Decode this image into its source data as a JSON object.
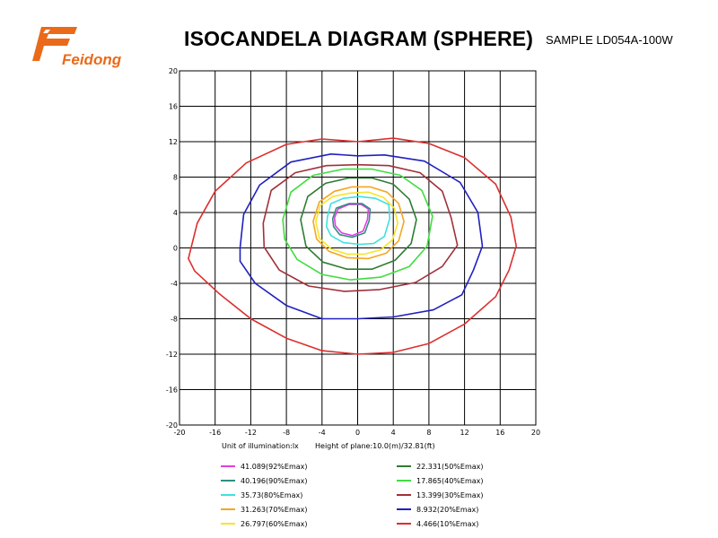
{
  "header": {
    "logo_text": "Feidong",
    "title": "ISOCANDELA DIAGRAM (SPHERE)",
    "sample": "SAMPLE  LD054A-100W"
  },
  "info": {
    "unit": "Unit of illumination:lx",
    "height": "Height of plane:10.0(m)/32.81(ft)"
  },
  "chart_data": {
    "type": "contour",
    "title": "ISOCANDELA DIAGRAM (SPHERE)",
    "xlim": [
      -20,
      20
    ],
    "ylim": [
      -20,
      20
    ],
    "x_ticks": [
      -20,
      -16,
      -12,
      -8,
      -4,
      0,
      4,
      8,
      12,
      16,
      20
    ],
    "y_ticks": [
      -20,
      -16,
      -12,
      -8,
      -4,
      0,
      4,
      8,
      12,
      16,
      20
    ],
    "grid": true,
    "legend_position": "bottom",
    "series": [
      {
        "name": "41.089(92%Emax)",
        "color": "#e040e0",
        "points": [
          [
            -2.6,
            3.4
          ],
          [
            -2.2,
            4.4
          ],
          [
            -1,
            4.9
          ],
          [
            0.4,
            4.9
          ],
          [
            1.2,
            4.4
          ],
          [
            1.1,
            3.2
          ],
          [
            0.6,
            1.9
          ],
          [
            -0.6,
            1.4
          ],
          [
            -1.8,
            1.7
          ],
          [
            -2.5,
            2.5
          ]
        ]
      },
      {
        "name": "40.196(90%Emax)",
        "color": "#2f8f7f",
        "points": [
          [
            -2.8,
            3.3
          ],
          [
            -2.4,
            4.5
          ],
          [
            -1,
            5
          ],
          [
            0.5,
            5
          ],
          [
            1.4,
            4.4
          ],
          [
            1.3,
            3.1
          ],
          [
            0.8,
            1.7
          ],
          [
            -0.6,
            1.2
          ],
          [
            -2,
            1.5
          ],
          [
            -2.7,
            2.4
          ]
        ]
      },
      {
        "name": "35.73(80%Emax)",
        "color": "#40e0e0",
        "points": [
          [
            -3.4,
            3.5
          ],
          [
            -3,
            5
          ],
          [
            -1.6,
            5.6
          ],
          [
            0.2,
            5.8
          ],
          [
            2,
            5.6
          ],
          [
            3.5,
            4.9
          ],
          [
            3.6,
            3.3
          ],
          [
            3,
            1.3
          ],
          [
            1.8,
            0.5
          ],
          [
            0.2,
            0.4
          ],
          [
            -1.6,
            0.6
          ],
          [
            -3,
            1.4
          ],
          [
            -3.5,
            2.4
          ]
        ]
      },
      {
        "name": "31.263(70%Emax)",
        "color": "#f5a623",
        "points": [
          [
            -5,
            3
          ],
          [
            -4.3,
            5.2
          ],
          [
            -2.6,
            6.4
          ],
          [
            -0.6,
            6.9
          ],
          [
            1.4,
            6.9
          ],
          [
            3.3,
            6.3
          ],
          [
            4.6,
            5
          ],
          [
            5.2,
            3
          ],
          [
            4.6,
            0.8
          ],
          [
            3.2,
            -0.6
          ],
          [
            1.2,
            -1.2
          ],
          [
            -1.2,
            -1.1
          ],
          [
            -3.2,
            -0.4
          ],
          [
            -4.6,
            1
          ]
        ]
      },
      {
        "name": "26.797(60%Emax)",
        "color": "#f5e52a",
        "points": [
          [
            -4.7,
            3
          ],
          [
            -4.2,
            4.8
          ],
          [
            -2.8,
            5.8
          ],
          [
            -0.8,
            6.2
          ],
          [
            1.2,
            6.3
          ],
          [
            2.9,
            5.7
          ],
          [
            4.1,
            4.5
          ],
          [
            4.5,
            2.8
          ],
          [
            3.9,
            0.9
          ],
          [
            2.6,
            -0.2
          ],
          [
            0.8,
            -0.7
          ],
          [
            -1.2,
            -0.7
          ],
          [
            -3,
            -0.1
          ],
          [
            -4.3,
            1.1
          ]
        ]
      },
      {
        "name": "22.331(50%Emax)",
        "color": "#2e7d32",
        "points": [
          [
            -6.4,
            3.2
          ],
          [
            -5.6,
            5.8
          ],
          [
            -3.6,
            7.3
          ],
          [
            -1,
            7.9
          ],
          [
            1.6,
            7.9
          ],
          [
            4,
            7.2
          ],
          [
            5.8,
            5.5
          ],
          [
            6.6,
            3.2
          ],
          [
            6,
            0.5
          ],
          [
            4.2,
            -1.4
          ],
          [
            1.6,
            -2.4
          ],
          [
            -1.2,
            -2.4
          ],
          [
            -3.9,
            -1.6
          ],
          [
            -5.8,
            0.2
          ]
        ]
      },
      {
        "name": "17.865(40%Emax)",
        "color": "#40dd40",
        "points": [
          [
            -8.4,
            3.2
          ],
          [
            -7.5,
            6.3
          ],
          [
            -5,
            8.2
          ],
          [
            -1.6,
            8.9
          ],
          [
            1.6,
            8.9
          ],
          [
            4.8,
            8.2
          ],
          [
            7.2,
            6.5
          ],
          [
            8.4,
            3.6
          ],
          [
            7.8,
            0.2
          ],
          [
            5.8,
            -2.1
          ],
          [
            2.6,
            -3.3
          ],
          [
            -0.8,
            -3.6
          ],
          [
            -4,
            -3
          ],
          [
            -6.8,
            -1.3
          ],
          [
            -8.2,
            1
          ]
        ]
      },
      {
        "name": "13.399(30%Emax)",
        "color": "#a0303a",
        "points": [
          [
            -10.6,
            2.8
          ],
          [
            -9.7,
            6.5
          ],
          [
            -7,
            8.5
          ],
          [
            -3.5,
            9.3
          ],
          [
            0,
            9.4
          ],
          [
            3.5,
            9.3
          ],
          [
            7,
            8.5
          ],
          [
            9.5,
            6.4
          ],
          [
            10.5,
            3.4
          ],
          [
            11.2,
            0.3
          ],
          [
            9.5,
            -2.1
          ],
          [
            6.5,
            -3.9
          ],
          [
            2.5,
            -4.7
          ],
          [
            -1.5,
            -4.9
          ],
          [
            -5.5,
            -4.3
          ],
          [
            -8.8,
            -2.5
          ],
          [
            -10.5,
            0.1
          ]
        ]
      },
      {
        "name": "8.932(20%Emax)",
        "color": "#2020c0",
        "points": [
          [
            -13.2,
            0
          ],
          [
            -12.8,
            3.8
          ],
          [
            -11,
            7.1
          ],
          [
            -7.5,
            9.7
          ],
          [
            -3,
            10.6
          ],
          [
            0,
            10.4
          ],
          [
            3,
            10.5
          ],
          [
            7.5,
            9.8
          ],
          [
            11.5,
            7.4
          ],
          [
            13.5,
            4
          ],
          [
            14,
            0.2
          ],
          [
            13,
            -2.5
          ],
          [
            11.7,
            -5.3
          ],
          [
            8.5,
            -7
          ],
          [
            4,
            -7.8
          ],
          [
            0,
            -8
          ],
          [
            -4,
            -8
          ],
          [
            -8,
            -6.5
          ],
          [
            -11.5,
            -4
          ],
          [
            -13.2,
            -1.5
          ]
        ]
      },
      {
        "name": "4.466(10%Emax)",
        "color": "#dd2e2e",
        "points": [
          [
            -19,
            -1.2
          ],
          [
            -18,
            2.8
          ],
          [
            -16,
            6.4
          ],
          [
            -12.5,
            9.6
          ],
          [
            -8,
            11.7
          ],
          [
            -4,
            12.3
          ],
          [
            0,
            12
          ],
          [
            4,
            12.4
          ],
          [
            8,
            11.8
          ],
          [
            12,
            10.2
          ],
          [
            15.5,
            7.2
          ],
          [
            17.2,
            3.5
          ],
          [
            17.8,
            0.2
          ],
          [
            17,
            -2.5
          ],
          [
            15.5,
            -5.5
          ],
          [
            12,
            -8.6
          ],
          [
            8,
            -10.8
          ],
          [
            4,
            -11.8
          ],
          [
            0,
            -12
          ],
          [
            -4,
            -11.6
          ],
          [
            -8,
            -10.2
          ],
          [
            -12,
            -8
          ],
          [
            -15.5,
            -5.2
          ],
          [
            -18.3,
            -2.6
          ]
        ]
      }
    ]
  }
}
